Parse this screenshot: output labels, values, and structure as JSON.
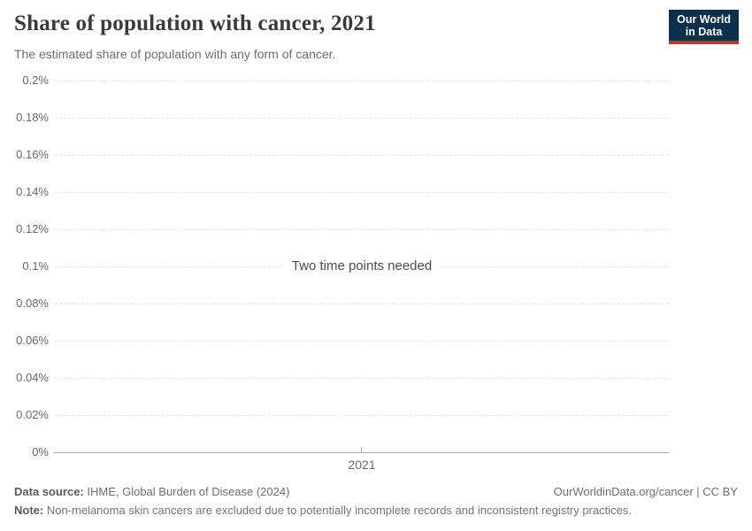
{
  "header": {
    "title": "Share of population with cancer, 2021",
    "subtitle": "The estimated share of population with any form of cancer.",
    "logo": {
      "line1": "Our World",
      "line2": "in Data"
    }
  },
  "chart_data": {
    "type": "line",
    "title": "Share of population with cancer, 2021",
    "subtitle": "The estimated share of population with any form of cancer.",
    "message": "Two time points needed",
    "series": [],
    "x": [
      "2021"
    ],
    "xticks": [
      "2021"
    ],
    "yticks": [
      "0.2%",
      "0.18%",
      "0.16%",
      "0.14%",
      "0.12%",
      "0.1%",
      "0.08%",
      "0.06%",
      "0.04%",
      "0.02%",
      "0%"
    ],
    "ylim_percent": [
      0,
      0.2
    ],
    "grid": "horizontal-dashed",
    "legend": "none"
  },
  "footer": {
    "datasource_label": "Data source:",
    "datasource_value": " IHME, Global Burden of Disease (2024)",
    "rights": "OurWorldinData.org/cancer | CC BY",
    "note_label": "Note:",
    "note_value": " Non-melanoma skin cancers are excluded due to potentially incomplete records and inconsistent registry practices."
  },
  "colors": {
    "logo_navy": "#0d2e4c",
    "logo_red": "#c5312f",
    "title_color": "#3a3a3a",
    "subtitle_color": "#6e6e6e",
    "tick_color": "#696969",
    "gridline_color": "#e2e2e2",
    "axis_color": "#a8a8a8",
    "message_color": "#4d4d4d",
    "footer_color": "#6e6e6e",
    "footer_label_color": "#5b5b5b",
    "note_color": "#757575"
  },
  "layout": {
    "grid_top": 91,
    "grid_row_height": 42
  }
}
